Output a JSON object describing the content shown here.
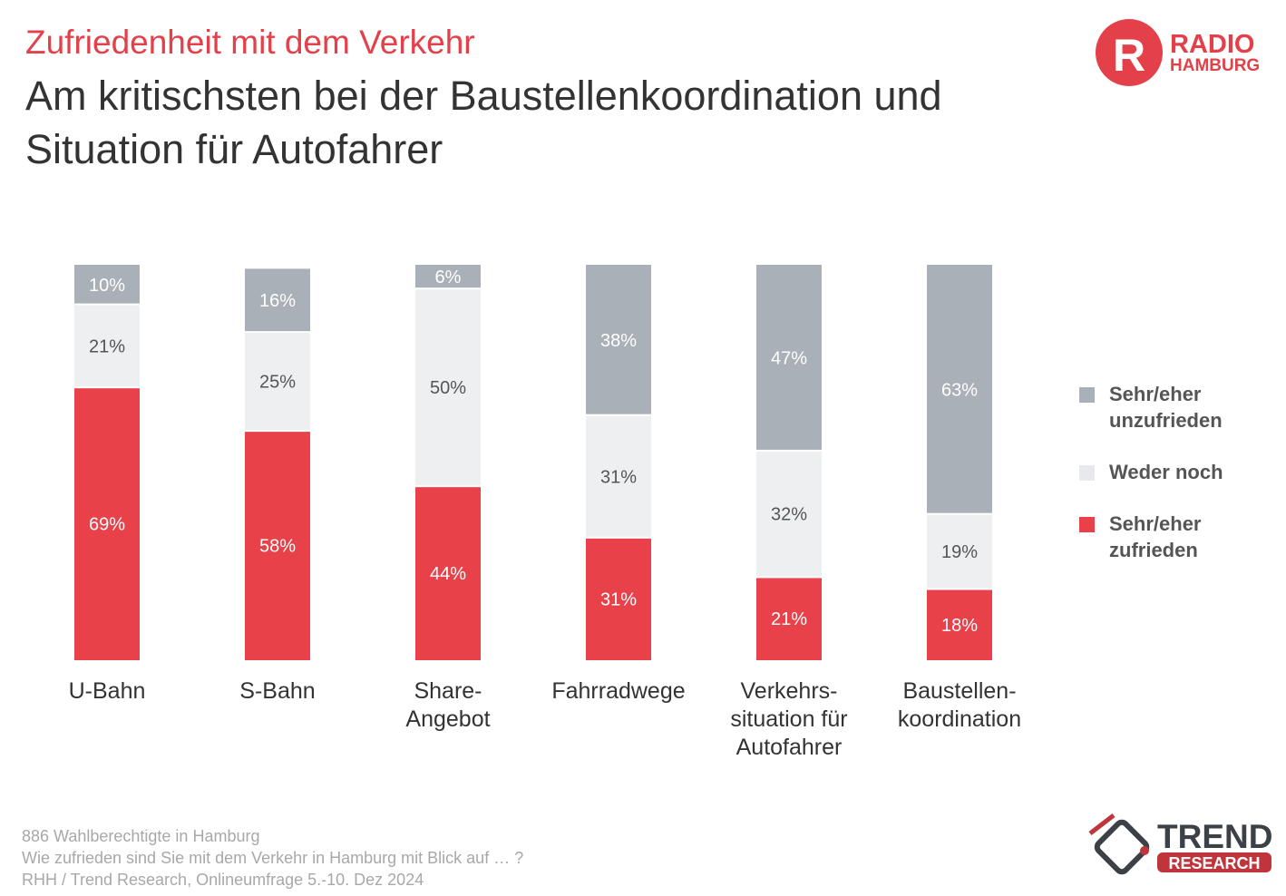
{
  "header": {
    "kicker": "Zufriedenheit mit dem Verkehr",
    "title": "Am kritischsten bei der Baustellenkoordination und Situation für Autofahrer"
  },
  "logos": {
    "radio": {
      "line1": "RADIO",
      "line2": "HAMBURG",
      "badge": "R"
    },
    "trend": {
      "line1": "TREND",
      "line2": "RESEARCH"
    }
  },
  "colors": {
    "unzufrieden": "#aab0b8",
    "weder": "#eeeff1",
    "zufrieden": "#e8414a"
  },
  "chart_data": {
    "type": "bar",
    "stacked": true,
    "orientation": "vertical",
    "categories": [
      [
        "U-Bahn"
      ],
      [
        "S-Bahn"
      ],
      [
        "Share-",
        "Angebot"
      ],
      [
        "Fahrradwege"
      ],
      [
        "Verkehrs-",
        "situation für",
        "Autofahrer"
      ],
      [
        "Baustellen-",
        "koordination"
      ]
    ],
    "series": [
      {
        "name": "Sehr/eher zufrieden",
        "key": "zufrieden",
        "values": [
          69,
          58,
          44,
          31,
          21,
          18
        ]
      },
      {
        "name": "Weder noch",
        "key": "weder",
        "values": [
          21,
          25,
          50,
          31,
          32,
          19
        ]
      },
      {
        "name": "Sehr/eher unzufrieden",
        "key": "unzufrieden",
        "values": [
          10,
          16,
          6,
          38,
          47,
          63
        ]
      }
    ],
    "legend": [
      {
        "key": "unzufrieden",
        "label": "Sehr/eher unzufrieden"
      },
      {
        "key": "weder",
        "label": "Weder noch"
      },
      {
        "key": "zufrieden",
        "label": "Sehr/eher zufrieden"
      }
    ],
    "legend_position": "right",
    "value_suffix": "%",
    "ylim": [
      0,
      100
    ]
  },
  "footer": [
    "886 Wahlberechtigte in Hamburg",
    "Wie zufrieden sind Sie mit dem Verkehr in Hamburg mit Blick auf … ?",
    "RHH / Trend Research, Onlineumfrage 5.-10. Dez 2024"
  ]
}
